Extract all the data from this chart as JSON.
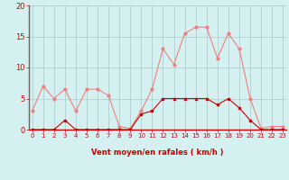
{
  "x": [
    0,
    1,
    2,
    3,
    4,
    5,
    6,
    7,
    8,
    9,
    10,
    11,
    12,
    13,
    14,
    15,
    16,
    17,
    18,
    19,
    20,
    21,
    22,
    23
  ],
  "y_rafales": [
    3,
    7,
    5,
    6.5,
    3,
    6.5,
    6.5,
    5.5,
    0.5,
    0.2,
    3,
    6.5,
    13,
    10.5,
    15.5,
    16.5,
    16.5,
    11.5,
    15.5,
    13,
    5,
    0.2,
    0.5,
    0.5
  ],
  "y_moyen": [
    0,
    0,
    0,
    1.5,
    0,
    0,
    0,
    0,
    0,
    0,
    2.5,
    3,
    5,
    5,
    5,
    5,
    5,
    4,
    5,
    3.5,
    1.5,
    0,
    0,
    0
  ],
  "color_rafales": "#f08080",
  "color_moyen": "#cc0000",
  "bg_color": "#d4f0f0",
  "grid_color": "#a8c8c8",
  "tick_color": "#cc0000",
  "xlabel": "Vent moyen/en rafales ( km/h )",
  "ylim": [
    0,
    20
  ],
  "yticks": [
    0,
    5,
    10,
    15,
    20
  ],
  "xticks": [
    0,
    1,
    2,
    3,
    4,
    5,
    6,
    7,
    8,
    9,
    10,
    11,
    12,
    13,
    14,
    15,
    16,
    17,
    18,
    19,
    20,
    21,
    22,
    23
  ],
  "marker_size": 2.0,
  "line_width": 0.8
}
